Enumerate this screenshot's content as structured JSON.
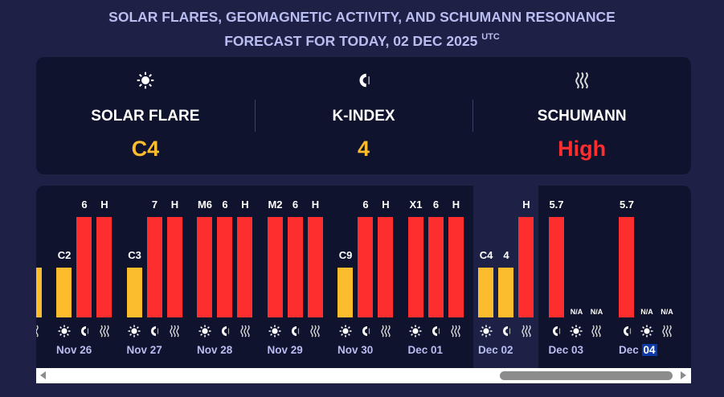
{
  "header": {
    "title_line1": "SOLAR FLARES, GEOMAGNETIC ACTIVITY, AND SCHUMANN RESONANCE",
    "title_line2": "FORECAST FOR TODAY, 02 DEC 2025",
    "utc": "UTC"
  },
  "summary": [
    {
      "icon": "sun",
      "label": "SOLAR FLARE",
      "value": "C4",
      "color": "#fbbd2d"
    },
    {
      "icon": "magnet",
      "label": "K-INDEX",
      "value": "4",
      "color": "#fbbd2d"
    },
    {
      "icon": "waves",
      "label": "SCHUMANN",
      "value": "High",
      "color": "#ff2e2e"
    }
  ],
  "colors": {
    "red": "#ff2e2e",
    "yellow": "#fbbd2d"
  },
  "days": [
    {
      "date": "Nov 26",
      "bars": [
        {
          "icon": "sun",
          "label": "C2",
          "level": "mid"
        },
        {
          "icon": "magnet",
          "label": "6",
          "level": "high"
        },
        {
          "icon": "waves",
          "label": "H",
          "level": "high"
        }
      ]
    },
    {
      "date": "Nov 27",
      "bars": [
        {
          "icon": "sun",
          "label": "C3",
          "level": "mid"
        },
        {
          "icon": "magnet",
          "label": "7",
          "level": "high"
        },
        {
          "icon": "waves",
          "label": "H",
          "level": "high"
        }
      ]
    },
    {
      "date": "Nov 28",
      "bars": [
        {
          "icon": "sun",
          "label": "M6",
          "level": "high"
        },
        {
          "icon": "magnet",
          "label": "6",
          "level": "high"
        },
        {
          "icon": "waves",
          "label": "H",
          "level": "high"
        }
      ]
    },
    {
      "date": "Nov 29",
      "bars": [
        {
          "icon": "sun",
          "label": "M2",
          "level": "high"
        },
        {
          "icon": "magnet",
          "label": "6",
          "level": "high"
        },
        {
          "icon": "waves",
          "label": "H",
          "level": "high"
        }
      ]
    },
    {
      "date": "Nov 30",
      "bars": [
        {
          "icon": "sun",
          "label": "C9",
          "level": "mid"
        },
        {
          "icon": "magnet",
          "label": "6",
          "level": "high"
        },
        {
          "icon": "waves",
          "label": "H",
          "level": "high"
        }
      ]
    },
    {
      "date": "Dec 01",
      "bars": [
        {
          "icon": "sun",
          "label": "X1",
          "level": "high"
        },
        {
          "icon": "magnet",
          "label": "6",
          "level": "high"
        },
        {
          "icon": "waves",
          "label": "H",
          "level": "high"
        }
      ]
    },
    {
      "date": "Dec 02",
      "today": true,
      "bars": [
        {
          "icon": "sun",
          "label": "C4",
          "level": "mid"
        },
        {
          "icon": "magnet",
          "label": "4",
          "level": "mid"
        },
        {
          "icon": "waves",
          "label": "H",
          "level": "high"
        }
      ]
    },
    {
      "date": "Dec 03",
      "bars": [
        {
          "icon": "magnet",
          "label": "5.7",
          "level": "high"
        },
        {
          "icon": "sun",
          "label": "N/A",
          "level": "none"
        },
        {
          "icon": "waves",
          "label": "N/A",
          "level": "none"
        }
      ]
    },
    {
      "date": "Dec",
      "date_hl": "04",
      "bars": [
        {
          "icon": "magnet",
          "label": "5.7",
          "level": "high"
        },
        {
          "icon": "sun",
          "label": "N/A",
          "level": "none"
        },
        {
          "icon": "waves",
          "label": "N/A",
          "level": "none"
        }
      ]
    }
  ]
}
